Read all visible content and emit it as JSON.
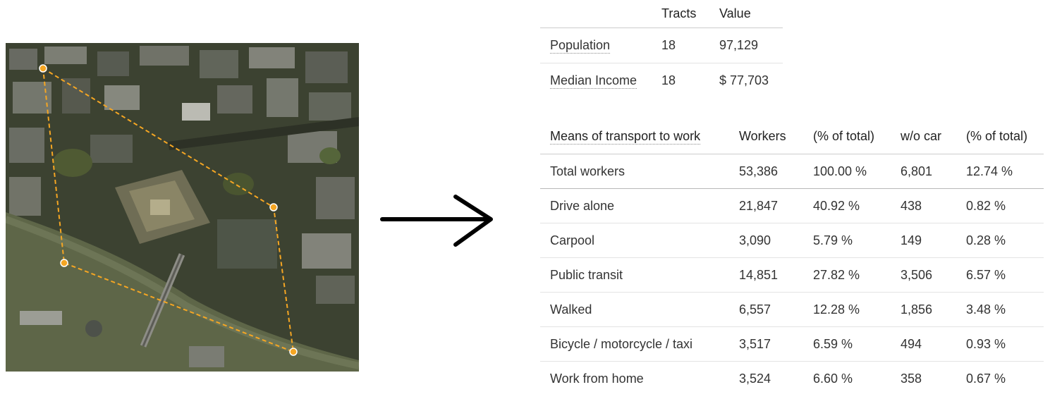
{
  "summary_table": {
    "headers": [
      "",
      "Tracts",
      "Value"
    ],
    "rows": [
      {
        "label": "Population",
        "tracts": "18",
        "value": "97,129"
      },
      {
        "label": "Median Income",
        "tracts": "18",
        "value": "$ 77,703"
      }
    ]
  },
  "transport_table": {
    "headers": [
      "Means of transport to work",
      "Workers",
      "(% of total)",
      "w/o car",
      "(% of total)"
    ],
    "rows": [
      {
        "label": "Total workers",
        "workers": "53,386",
        "pct": "100.00 %",
        "wo_car": "6,801",
        "wo_car_pct": "12.74 %"
      },
      {
        "label": "Drive alone",
        "workers": "21,847",
        "pct": "40.92 %",
        "wo_car": "438",
        "wo_car_pct": "0.82 %"
      },
      {
        "label": "Carpool",
        "workers": "3,090",
        "pct": "5.79 %",
        "wo_car": "149",
        "wo_car_pct": "0.28 %"
      },
      {
        "label": "Public transit",
        "workers": "14,851",
        "pct": "27.82 %",
        "wo_car": "3,506",
        "wo_car_pct": "6.57 %"
      },
      {
        "label": "Walked",
        "workers": "6,557",
        "pct": "12.28 %",
        "wo_car": "1,856",
        "wo_car_pct": "3.48 %"
      },
      {
        "label": "Bicycle / motorcycle / taxi",
        "workers": "3,517",
        "pct": "6.59 %",
        "wo_car": "494",
        "wo_car_pct": "0.93 %"
      },
      {
        "label": "Work from home",
        "workers": "3,524",
        "pct": "6.60 %",
        "wo_car": "358",
        "wo_car_pct": "0.67 %"
      }
    ]
  },
  "colors": {
    "polygon": "#f5a623",
    "river": "#5e6648",
    "arrow": "#000000"
  },
  "icons": {
    "arrow": "right-arrow-icon"
  }
}
